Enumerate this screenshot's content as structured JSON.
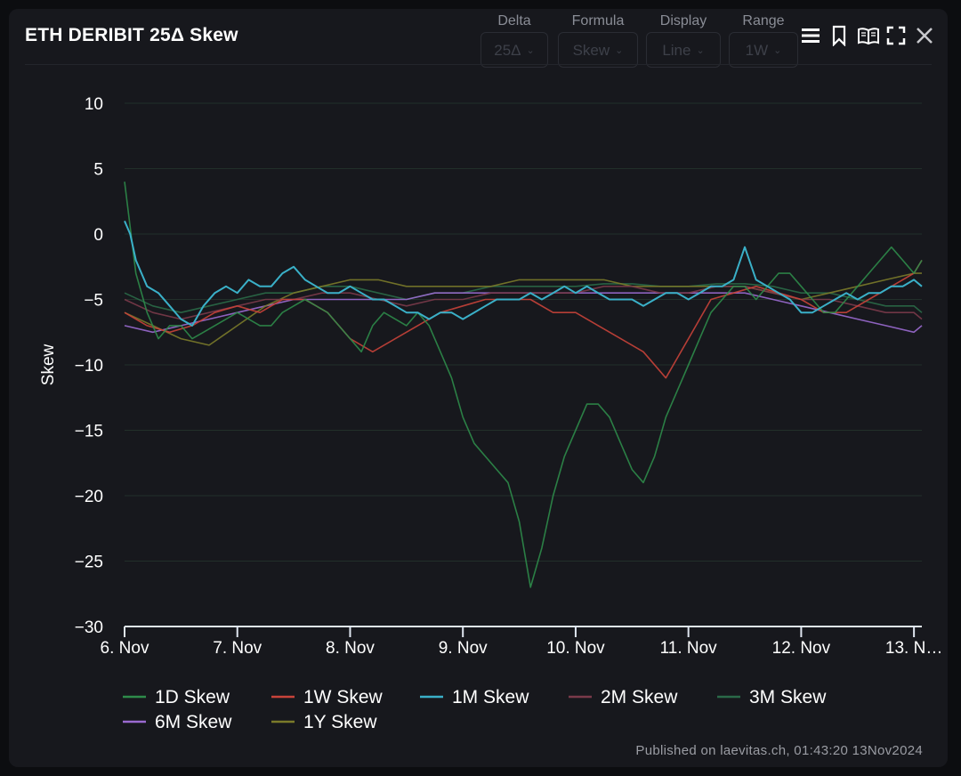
{
  "header": {
    "title": "ETH DERIBIT 25Δ Skew",
    "controls": [
      {
        "label": "Delta",
        "value": "25Δ"
      },
      {
        "label": "Formula",
        "value": "Skew"
      },
      {
        "label": "Display",
        "value": "Line"
      },
      {
        "label": "Range",
        "value": "1W"
      }
    ],
    "tool_icons": [
      "menu-icon",
      "bookmark-icon",
      "book-icon",
      "fullscreen-icon",
      "close-icon"
    ]
  },
  "footer": "Published on laevitas.ch, 01:43:20 13Nov2024",
  "chart_data": {
    "type": "line",
    "ylabel": "Skew",
    "ylim": [
      -30,
      10
    ],
    "yticks": [
      10,
      5,
      0,
      -5,
      -10,
      -15,
      -20,
      -25,
      -30
    ],
    "xlim": [
      0,
      7.07
    ],
    "xticks": [
      {
        "value": 0,
        "label": "6. Nov"
      },
      {
        "value": 1,
        "label": "7. Nov"
      },
      {
        "value": 2,
        "label": "8. Nov"
      },
      {
        "value": 3,
        "label": "9. Nov"
      },
      {
        "value": 4,
        "label": "10. Nov"
      },
      {
        "value": 5,
        "label": "11. Nov"
      },
      {
        "value": 6,
        "label": "12. Nov"
      },
      {
        "value": 7,
        "label": "13. N…"
      }
    ],
    "grid": true,
    "legend_position": "bottom",
    "series": [
      {
        "name": "1D Skew",
        "color": "#2e8b4a",
        "x": [
          0,
          0.1,
          0.2,
          0.3,
          0.4,
          0.5,
          0.6,
          0.7,
          0.8,
          0.9,
          1.0,
          1.1,
          1.2,
          1.3,
          1.4,
          1.5,
          1.6,
          1.7,
          1.8,
          1.9,
          2.0,
          2.1,
          2.2,
          2.3,
          2.4,
          2.5,
          2.6,
          2.7,
          2.8,
          2.9,
          3.0,
          3.1,
          3.2,
          3.3,
          3.4,
          3.5,
          3.6,
          3.7,
          3.8,
          3.9,
          4.0,
          4.1,
          4.2,
          4.3,
          4.4,
          4.5,
          4.6,
          4.7,
          4.8,
          4.9,
          5.0,
          5.1,
          5.2,
          5.3,
          5.4,
          5.5,
          5.6,
          5.7,
          5.8,
          5.9,
          6.0,
          6.1,
          6.2,
          6.3,
          6.4,
          6.5,
          6.6,
          6.7,
          6.8,
          6.9,
          7.0,
          7.07
        ],
        "y": [
          4,
          -3,
          -6,
          -8,
          -7,
          -7,
          -8,
          -7.5,
          -7,
          -6.5,
          -6,
          -6.5,
          -7,
          -7,
          -6,
          -5.5,
          -5,
          -5.5,
          -6,
          -7,
          -8,
          -9,
          -7,
          -6,
          -6.5,
          -7,
          -6,
          -7,
          -9,
          -11,
          -14,
          -16,
          -17,
          -18,
          -19,
          -22,
          -27,
          -24,
          -20,
          -17,
          -15,
          -13,
          -13,
          -14,
          -16,
          -18,
          -19,
          -17,
          -14,
          -12,
          -10,
          -8,
          -6,
          -5,
          -4,
          -4,
          -5,
          -4,
          -3,
          -3,
          -4,
          -5,
          -6,
          -6,
          -5,
          -4,
          -3,
          -2,
          -1,
          -2,
          -3,
          -2
        ]
      },
      {
        "name": "1W Skew",
        "color": "#c8433a",
        "x": [
          0,
          0.2,
          0.4,
          0.6,
          0.8,
          1.0,
          1.2,
          1.4,
          1.6,
          1.8,
          2.0,
          2.2,
          2.4,
          2.6,
          2.8,
          3.0,
          3.2,
          3.4,
          3.6,
          3.8,
          4.0,
          4.2,
          4.4,
          4.6,
          4.8,
          5.0,
          5.2,
          5.4,
          5.6,
          5.8,
          6.0,
          6.2,
          6.4,
          6.6,
          6.8,
          7.0,
          7.07
        ],
        "y": [
          -6,
          -7,
          -7.5,
          -7,
          -6,
          -5.5,
          -6,
          -5,
          -5,
          -6,
          -8,
          -9,
          -8,
          -7,
          -6,
          -5.5,
          -5,
          -5,
          -5,
          -6,
          -6,
          -7,
          -8,
          -9,
          -11,
          -8,
          -5,
          -4.5,
          -4,
          -4.5,
          -5,
          -6,
          -6,
          -5,
          -4,
          -3,
          -2
        ]
      },
      {
        "name": "1M Skew",
        "color": "#3ab0c8",
        "x": [
          0,
          0.05,
          0.1,
          0.2,
          0.3,
          0.4,
          0.5,
          0.6,
          0.7,
          0.8,
          0.9,
          1.0,
          1.1,
          1.2,
          1.3,
          1.4,
          1.5,
          1.6,
          1.7,
          1.8,
          1.9,
          2.0,
          2.1,
          2.2,
          2.3,
          2.4,
          2.5,
          2.6,
          2.7,
          2.8,
          2.9,
          3.0,
          3.1,
          3.2,
          3.3,
          3.4,
          3.5,
          3.6,
          3.7,
          3.8,
          3.9,
          4.0,
          4.1,
          4.2,
          4.3,
          4.4,
          4.5,
          4.6,
          4.7,
          4.8,
          4.9,
          5.0,
          5.1,
          5.2,
          5.3,
          5.4,
          5.5,
          5.6,
          5.7,
          5.8,
          5.9,
          6.0,
          6.1,
          6.2,
          6.3,
          6.4,
          6.5,
          6.6,
          6.7,
          6.8,
          6.9,
          7.0,
          7.07
        ],
        "y": [
          1,
          0,
          -2,
          -4,
          -4.5,
          -5.5,
          -6.5,
          -7,
          -5.5,
          -4.5,
          -4,
          -4.5,
          -3.5,
          -4,
          -4,
          -3,
          -2.5,
          -3.5,
          -4,
          -4.5,
          -4.5,
          -4,
          -4.5,
          -5,
          -5,
          -5.5,
          -6,
          -6,
          -6.5,
          -6,
          -6,
          -6.5,
          -6,
          -5.5,
          -5,
          -5,
          -5,
          -4.5,
          -5,
          -4.5,
          -4,
          -4.5,
          -4,
          -4.5,
          -5,
          -5,
          -5,
          -5.5,
          -5,
          -4.5,
          -4.5,
          -5,
          -4.5,
          -4,
          -4,
          -3.5,
          -1,
          -3.5,
          -4,
          -4.5,
          -5,
          -6,
          -6,
          -5.5,
          -5,
          -4.5,
          -5,
          -4.5,
          -4.5,
          -4,
          -4,
          -3.5,
          -4
        ]
      },
      {
        "name": "2M Skew",
        "color": "#7a3a4a",
        "x": [
          0,
          0.25,
          0.5,
          0.75,
          1.0,
          1.25,
          1.5,
          1.75,
          2.0,
          2.25,
          2.5,
          2.75,
          3.0,
          3.25,
          3.5,
          3.75,
          4.0,
          4.25,
          4.5,
          4.75,
          5.0,
          5.25,
          5.5,
          5.75,
          6.0,
          6.25,
          6.5,
          6.75,
          7.0,
          7.07
        ],
        "y": [
          -5,
          -6,
          -6.5,
          -6,
          -5.5,
          -5,
          -5,
          -4.5,
          -4.5,
          -5,
          -5.5,
          -5,
          -5,
          -4.5,
          -4.5,
          -4.5,
          -4.5,
          -4,
          -4,
          -4.5,
          -4.5,
          -4,
          -4,
          -4.5,
          -5,
          -5,
          -5.5,
          -6,
          -6,
          -6.5
        ]
      },
      {
        "name": "3M Skew",
        "color": "#2a6a48",
        "x": [
          0,
          0.25,
          0.5,
          0.75,
          1.0,
          1.25,
          1.5,
          1.75,
          2.0,
          2.25,
          2.5,
          2.75,
          3.0,
          3.25,
          3.5,
          3.75,
          4.0,
          4.25,
          4.5,
          4.75,
          5.0,
          5.25,
          5.5,
          5.75,
          6.0,
          6.25,
          6.5,
          6.75,
          7.0,
          7.07
        ],
        "y": [
          -4.5,
          -5.5,
          -6,
          -5.5,
          -5,
          -4.5,
          -4.5,
          -4,
          -4,
          -4.5,
          -5,
          -4.5,
          -4.5,
          -4,
          -4,
          -4,
          -4,
          -3.8,
          -3.8,
          -4,
          -4,
          -3.8,
          -3.8,
          -4,
          -4.5,
          -4.5,
          -5,
          -5.5,
          -5.5,
          -6
        ]
      },
      {
        "name": "6M Skew",
        "color": "#9a6ad0",
        "x": [
          0,
          0.25,
          0.5,
          0.75,
          1.0,
          1.25,
          1.5,
          1.75,
          2.0,
          2.25,
          2.5,
          2.75,
          3.0,
          3.25,
          3.5,
          3.75,
          4.0,
          4.25,
          4.5,
          4.75,
          5.0,
          5.25,
          5.5,
          5.75,
          6.0,
          6.25,
          6.5,
          6.75,
          7.0,
          7.07
        ],
        "y": [
          -7,
          -7.5,
          -7,
          -6.5,
          -6,
          -5.5,
          -5,
          -5,
          -5,
          -5,
          -5,
          -4.5,
          -4.5,
          -4.5,
          -4.5,
          -4.5,
          -4.5,
          -4.5,
          -4.5,
          -4.5,
          -4.5,
          -4.5,
          -4.5,
          -5,
          -5.5,
          -6,
          -6.5,
          -7,
          -7.5,
          -7
        ]
      },
      {
        "name": "1Y Skew",
        "color": "#7a7a2a",
        "x": [
          0,
          0.25,
          0.5,
          0.75,
          1.0,
          1.25,
          1.5,
          1.75,
          2.0,
          2.25,
          2.5,
          2.75,
          3.0,
          3.25,
          3.5,
          3.75,
          4.0,
          4.25,
          4.5,
          4.75,
          5.0,
          5.25,
          5.5,
          5.75,
          6.0,
          6.25,
          6.5,
          6.75,
          7.0,
          7.07
        ],
        "y": [
          -6,
          -7,
          -8,
          -8.5,
          -7,
          -5.5,
          -4.5,
          -4,
          -3.5,
          -3.5,
          -4,
          -4,
          -4,
          -4,
          -3.5,
          -3.5,
          -3.5,
          -3.5,
          -4,
          -4,
          -4,
          -4,
          -4,
          -4.5,
          -5,
          -4.5,
          -4,
          -3.5,
          -3,
          -3
        ]
      }
    ]
  }
}
